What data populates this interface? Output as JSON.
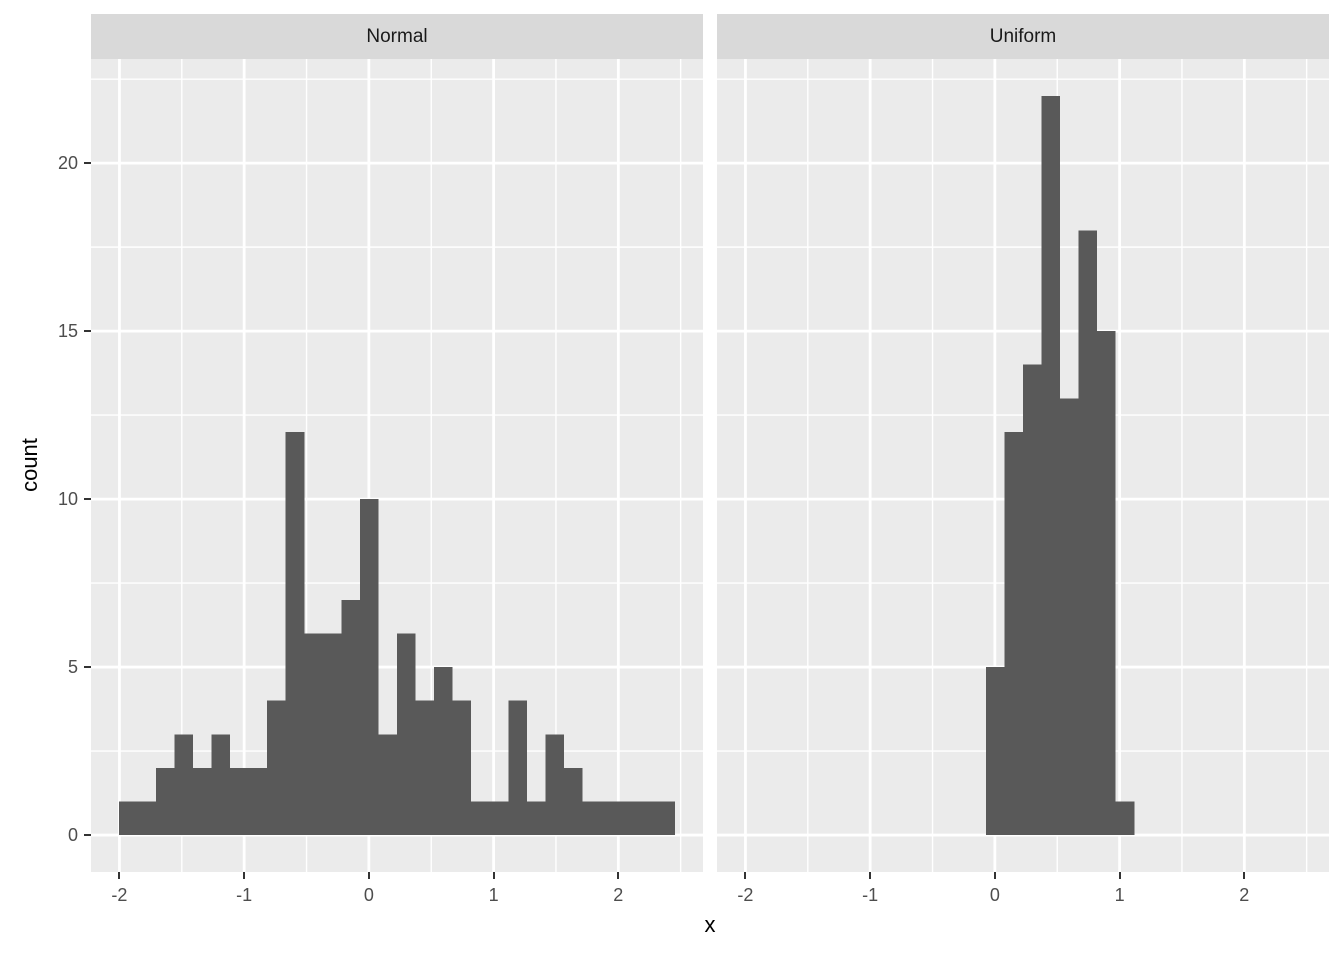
{
  "chart_data": {
    "type": "bar",
    "subtype": "faceted-histogram",
    "xlabel": "x",
    "ylabel": "count",
    "facet_labels": [
      "Normal",
      "Uniform"
    ],
    "x_tick_labels": [
      "-2",
      "-1",
      "0",
      "1",
      "2"
    ],
    "y_tick_labels": [
      "0",
      "5",
      "10",
      "15",
      "20"
    ],
    "x_tick_values": [
      -2,
      -1,
      0,
      1,
      2
    ],
    "y_tick_values": [
      0,
      5,
      10,
      15,
      20
    ],
    "x_minor_values": [
      -1.5,
      -0.5,
      0.5,
      1.5,
      2.5
    ],
    "y_minor_values": [
      2.5,
      7.5,
      12.5,
      17.5,
      22.5
    ],
    "x_domain": [
      -2.228,
      2.679
    ],
    "y_domain": [
      -1.1,
      23.1
    ],
    "bin_width": 0.1487,
    "grid": true,
    "legend": "none",
    "panels": [
      {
        "label": "Normal",
        "bin_start": -2.005,
        "counts": [
          1,
          1,
          2,
          3,
          2,
          3,
          2,
          2,
          4,
          12,
          6,
          6,
          7,
          10,
          3,
          6,
          4,
          5,
          4,
          1,
          1,
          4,
          1,
          3,
          2,
          1,
          1,
          1,
          1,
          1
        ]
      },
      {
        "label": "Uniform",
        "bin_start": -0.072,
        "counts": [
          5,
          12,
          14,
          22,
          13,
          18,
          15,
          1
        ]
      }
    ],
    "colors": {
      "bar_fill": "#595959",
      "panel_background": "#EBEBEB",
      "strip_background": "#D9D9D9",
      "gridline": "#FFFFFF",
      "axis_text": "#4D4D4D",
      "strip_text": "#1A1A1A",
      "axis_title": "#000000",
      "tick_mark": "#333333",
      "figure_background": "#FFFFFF"
    }
  }
}
